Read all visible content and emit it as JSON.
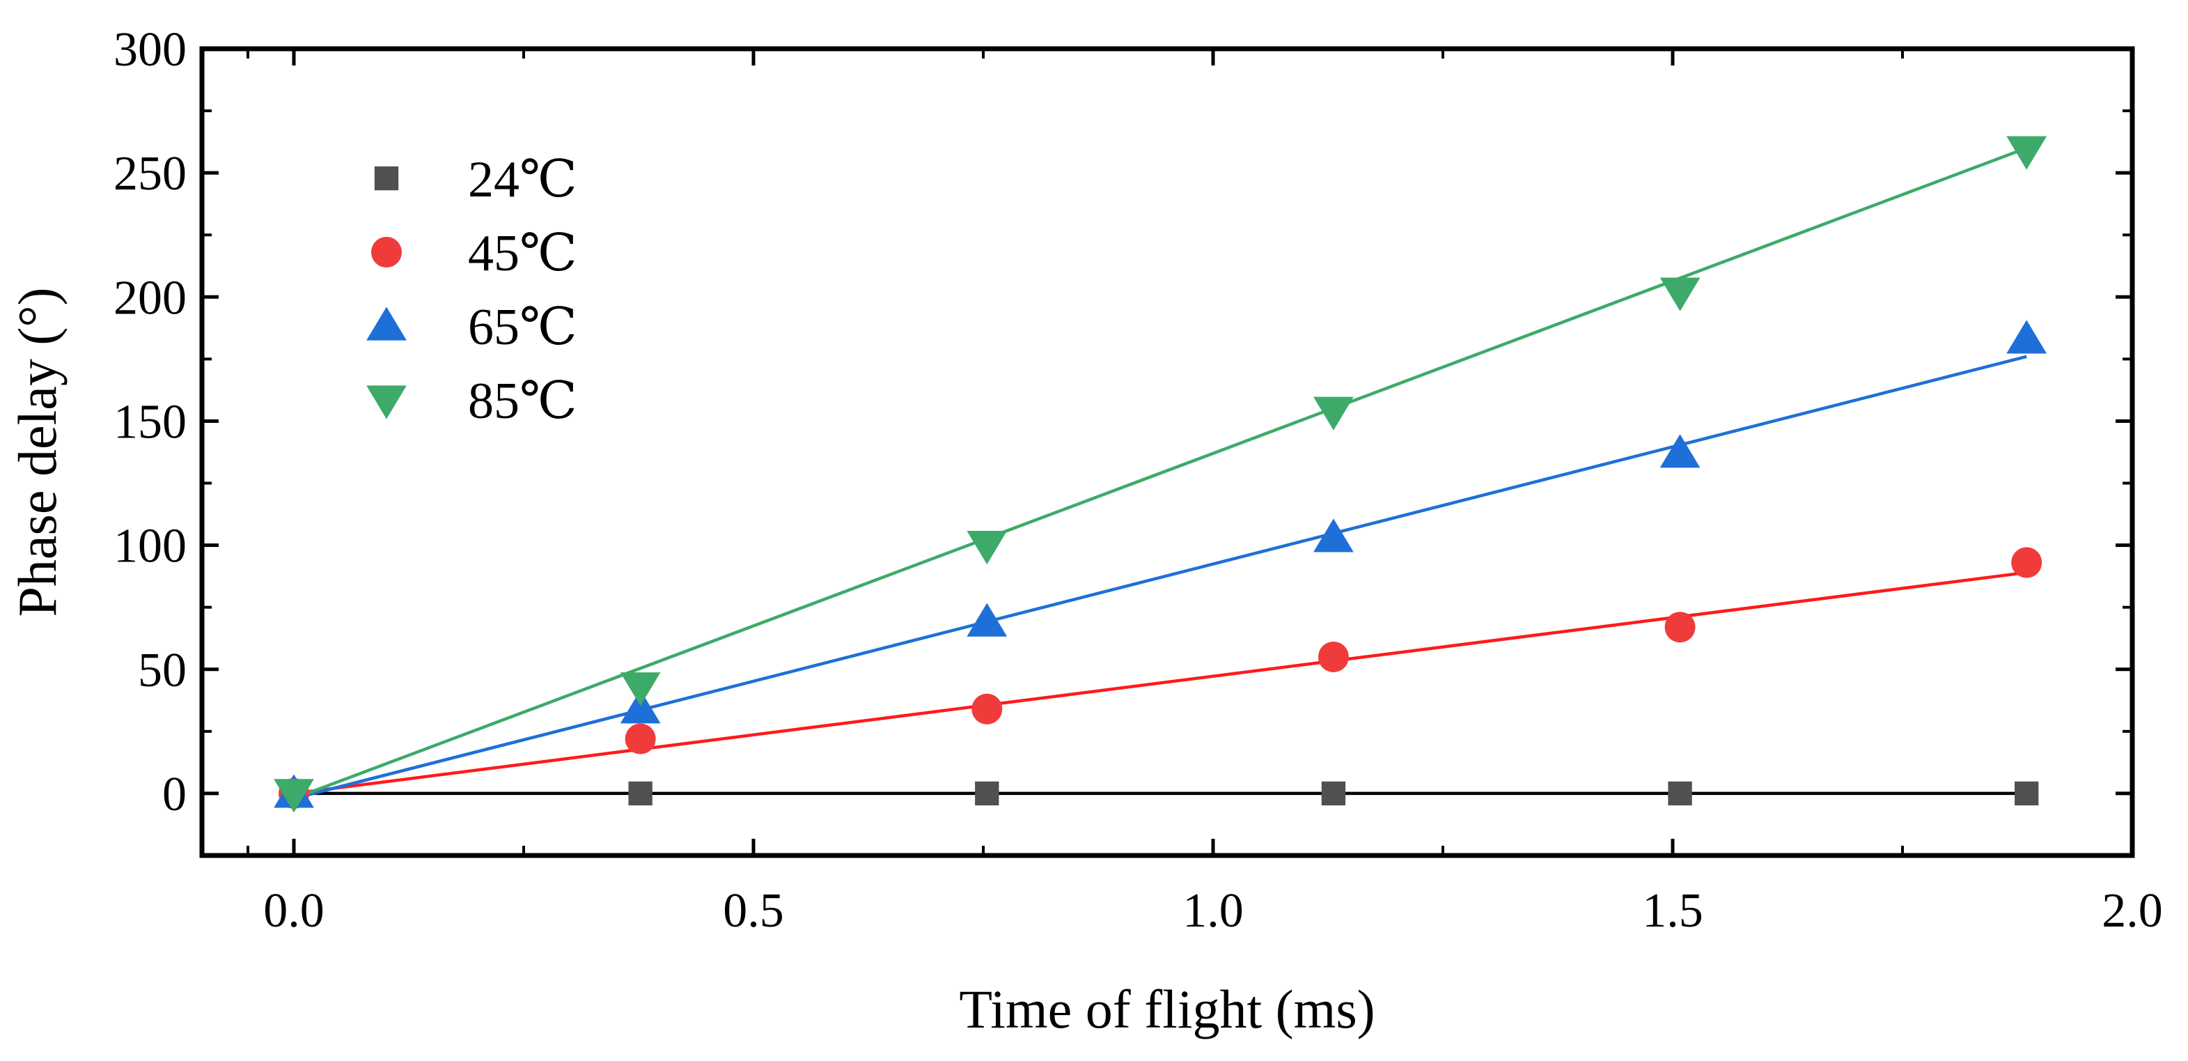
{
  "chart_data": {
    "type": "scatter",
    "title": "",
    "xlabel": "Time of flight (ms)",
    "ylabel": "Phase delay (°)",
    "xlim": [
      -0.1,
      2.0
    ],
    "ylim": [
      -25,
      300
    ],
    "xticks": [
      0.0,
      0.5,
      1.0,
      1.5,
      2.0
    ],
    "xtick_labels": [
      "0.0",
      "0.5",
      "1.0",
      "1.5",
      "2.0"
    ],
    "yticks": [
      0,
      50,
      100,
      150,
      200,
      250,
      300
    ],
    "ytick_labels": [
      "0",
      "50",
      "100",
      "150",
      "200",
      "250",
      "300"
    ],
    "grid": false,
    "legend_position": "top-left",
    "x": [
      0,
      0.377,
      0.754,
      1.131,
      1.508,
      1.885
    ],
    "series": [
      {
        "name": "24℃",
        "marker": "square",
        "color": "#505050",
        "line_color": "#000000",
        "values": [
          0,
          0,
          0,
          0,
          0,
          0
        ],
        "fit": [
          [
            0,
            0
          ],
          [
            1.885,
            0
          ]
        ]
      },
      {
        "name": "45℃",
        "marker": "circle",
        "color": "#f03b3b",
        "line_color": "#ff1a1a",
        "values": [
          0,
          22,
          34,
          55,
          67,
          93
        ],
        "fit": [
          [
            0,
            0
          ],
          [
            1.885,
            89
          ]
        ]
      },
      {
        "name": "65℃",
        "marker": "triangle-up",
        "color": "#1f6fd8",
        "line_color": "#1f6fd8",
        "values": [
          0,
          34,
          69,
          103,
          137,
          183
        ],
        "fit": [
          [
            0,
            -2
          ],
          [
            1.885,
            176
          ]
        ]
      },
      {
        "name": "85℃",
        "marker": "triangle-down",
        "color": "#3daa6a",
        "line_color": "#3daa6a",
        "values": [
          0,
          43,
          100,
          154,
          202,
          259
        ],
        "fit": [
          [
            0,
            -2
          ],
          [
            1.885,
            260
          ]
        ]
      }
    ]
  }
}
